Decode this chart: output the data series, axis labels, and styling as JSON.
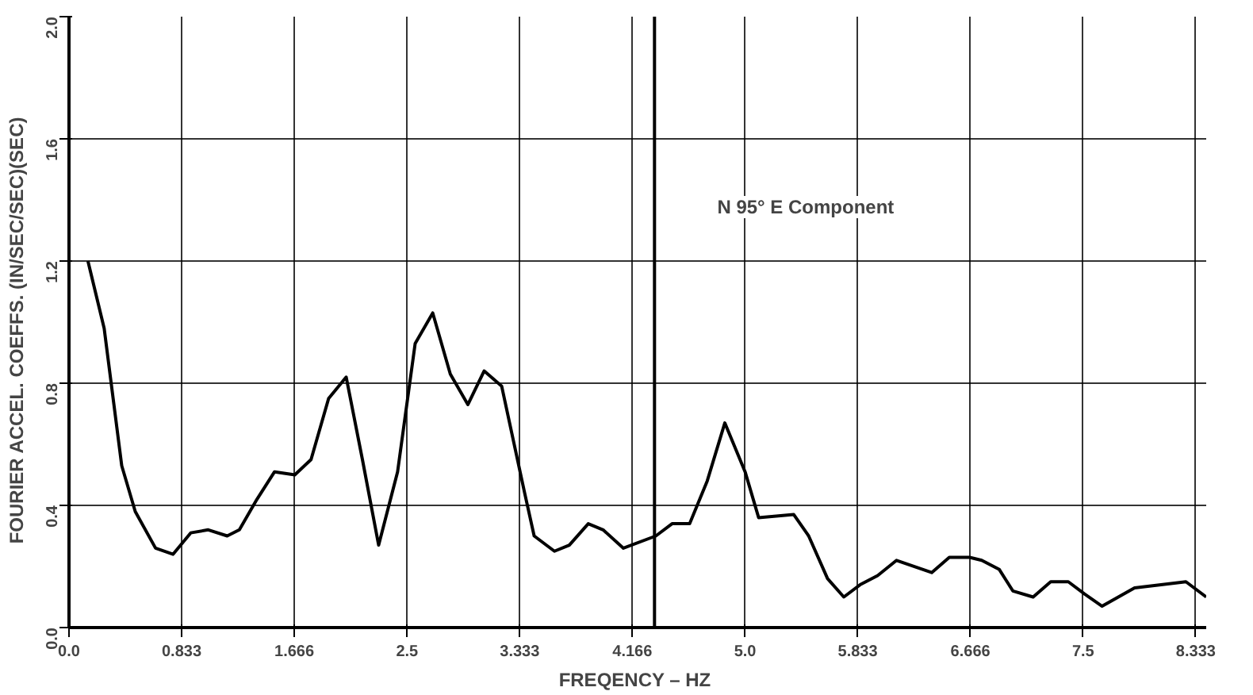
{
  "chart_data": {
    "type": "line",
    "xlabel": "FREQENCY  – HZ",
    "ylabel": "FOURIER  ACCEL.  COEFFS.  (IN/SEC/SEC)(SEC)",
    "annotations": [
      "N 95° E  Component"
    ],
    "x": [
      0.14,
      0.26,
      0.39,
      0.49,
      0.64,
      0.77,
      0.9,
      1.03,
      1.17,
      1.26,
      1.39,
      1.52,
      1.67,
      1.79,
      1.92,
      2.05,
      2.17,
      2.29,
      2.43,
      2.56,
      2.69,
      2.82,
      2.95,
      3.07,
      3.2,
      3.37,
      3.44,
      3.59,
      3.7,
      3.84,
      3.95,
      4.1,
      4.34,
      4.46,
      4.59,
      4.72,
      4.85,
      5.0,
      5.1,
      5.36,
      5.47,
      5.61,
      5.73,
      5.85,
      5.98,
      6.12,
      6.38,
      6.51,
      6.66,
      6.75,
      6.88,
      6.98,
      7.13,
      7.26,
      7.39,
      7.51,
      7.64,
      7.88,
      8.26,
      8.41
    ],
    "series": [
      {
        "color": "#000000",
        "values": [
          1.2,
          0.98,
          0.53,
          0.38,
          0.26,
          0.24,
          0.31,
          0.32,
          0.3,
          0.32,
          0.42,
          0.51,
          0.5,
          0.55,
          0.75,
          0.82,
          0.55,
          0.27,
          0.51,
          0.93,
          1.03,
          0.83,
          0.73,
          0.84,
          0.79,
          0.44,
          0.3,
          0.25,
          0.27,
          0.34,
          0.32,
          0.26,
          0.3,
          0.34,
          0.34,
          0.48,
          0.67,
          0.51,
          0.36,
          0.37,
          0.3,
          0.16,
          0.1,
          0.14,
          0.17,
          0.22,
          0.18,
          0.23,
          0.23,
          0.22,
          0.19,
          0.12,
          0.1,
          0.15,
          0.15,
          0.11,
          0.07,
          0.13,
          0.15,
          0.1
        ]
      }
    ],
    "xlim": [
      0,
      8.41
    ],
    "ylim": [
      0,
      2.0
    ],
    "xticks": [
      {
        "value": 0,
        "label": "0.0"
      },
      0.833,
      1.666,
      2.5,
      3.333,
      4.166,
      {
        "value": 5,
        "label": "5.0"
      },
      5.833,
      6.666,
      7.5,
      8.333
    ],
    "yticks": [
      {
        "value": 0,
        "label": "0.0"
      },
      0.4,
      0.8,
      1.2,
      1.6,
      {
        "value": 2,
        "label": "2.0"
      }
    ],
    "ref_lines": [
      {
        "axis": "x",
        "value": 4.33,
        "color": "#000000"
      }
    ],
    "grid": true,
    "marker": "none",
    "line_style": "solid"
  }
}
